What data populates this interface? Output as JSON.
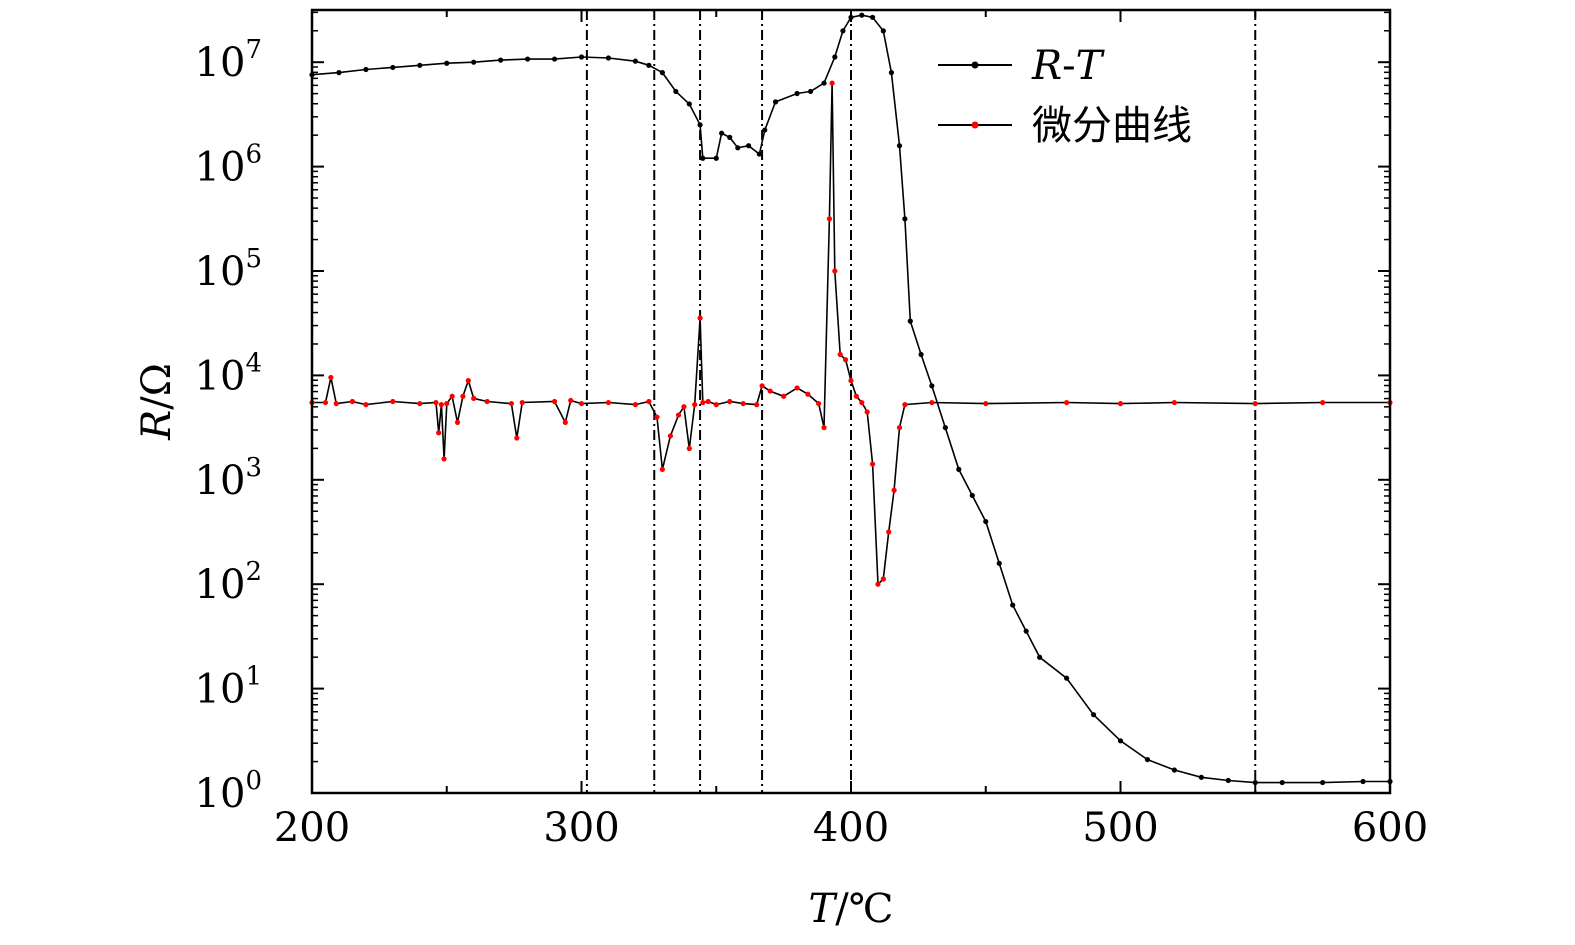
{
  "chart_data": {
    "type": "line",
    "title": "",
    "xlabel": {
      "var": "T",
      "unit": "℃"
    },
    "ylabel": {
      "var": "R",
      "unit": "Ω"
    },
    "xlim": [
      200,
      600
    ],
    "ylim_log10": [
      0,
      7.5
    ],
    "yscale": "log",
    "x_ticks": [
      {
        "value": 200,
        "label": "200"
      },
      {
        "value": 300,
        "label": "300"
      },
      {
        "value": 400,
        "label": "400"
      },
      {
        "value": 500,
        "label": "500"
      },
      {
        "value": 600,
        "label": "600"
      }
    ],
    "y_ticks": [
      {
        "exp": 0,
        "base": "10",
        "sup": "0"
      },
      {
        "exp": 1,
        "base": "10",
        "sup": "1"
      },
      {
        "exp": 2,
        "base": "10",
        "sup": "2"
      },
      {
        "exp": 3,
        "base": "10",
        "sup": "3"
      },
      {
        "exp": 4,
        "base": "10",
        "sup": "4"
      },
      {
        "exp": 5,
        "base": "10",
        "sup": "5"
      },
      {
        "exp": 6,
        "base": "10",
        "sup": "6"
      },
      {
        "exp": 7,
        "base": "10",
        "sup": "7"
      }
    ],
    "vlines": [
      302,
      327,
      344,
      367,
      400,
      550
    ],
    "legend_position": "top-right",
    "series": [
      {
        "name": "R-T",
        "legend_parts": [
          "R",
          "-",
          "T"
        ],
        "color": "#000000",
        "points": [
          [
            200,
            6.88
          ],
          [
            210,
            6.9
          ],
          [
            220,
            6.93
          ],
          [
            230,
            6.95
          ],
          [
            240,
            6.97
          ],
          [
            250,
            6.99
          ],
          [
            260,
            7.0
          ],
          [
            270,
            7.02
          ],
          [
            280,
            7.03
          ],
          [
            290,
            7.03
          ],
          [
            300,
            7.05
          ],
          [
            310,
            7.04
          ],
          [
            320,
            7.01
          ],
          [
            325,
            6.97
          ],
          [
            330,
            6.9
          ],
          [
            335,
            6.72
          ],
          [
            340,
            6.6
          ],
          [
            344,
            6.4
          ],
          [
            345,
            6.08
          ],
          [
            350,
            6.08
          ],
          [
            352,
            6.32
          ],
          [
            355,
            6.28
          ],
          [
            358,
            6.18
          ],
          [
            362,
            6.2
          ],
          [
            366,
            6.12
          ],
          [
            368,
            6.35
          ],
          [
            372,
            6.62
          ],
          [
            380,
            6.7
          ],
          [
            385,
            6.72
          ],
          [
            390,
            6.8
          ],
          [
            394,
            7.05
          ],
          [
            397,
            7.3
          ],
          [
            400,
            7.43
          ],
          [
            404,
            7.45
          ],
          [
            408,
            7.43
          ],
          [
            412,
            7.3
          ],
          [
            415,
            6.9
          ],
          [
            418,
            6.2
          ],
          [
            420,
            5.5
          ],
          [
            422,
            4.52
          ],
          [
            426,
            4.2
          ],
          [
            430,
            3.9
          ],
          [
            435,
            3.5
          ],
          [
            440,
            3.1
          ],
          [
            445,
            2.85
          ],
          [
            450,
            2.6
          ],
          [
            455,
            2.2
          ],
          [
            460,
            1.8
          ],
          [
            465,
            1.55
          ],
          [
            470,
            1.3
          ],
          [
            480,
            1.1
          ],
          [
            490,
            0.75
          ],
          [
            500,
            0.5
          ],
          [
            510,
            0.32
          ],
          [
            520,
            0.22
          ],
          [
            530,
            0.15
          ],
          [
            540,
            0.12
          ],
          [
            550,
            0.1
          ],
          [
            560,
            0.1
          ],
          [
            575,
            0.1
          ],
          [
            590,
            0.11
          ],
          [
            600,
            0.11
          ]
        ]
      },
      {
        "name": "微分曲线",
        "legend_parts": [
          "微分曲线"
        ],
        "color": "#ff0000",
        "points": [
          [
            200,
            3.74
          ],
          [
            205,
            3.74
          ],
          [
            207,
            3.98
          ],
          [
            209,
            3.73
          ],
          [
            215,
            3.75
          ],
          [
            220,
            3.72
          ],
          [
            230,
            3.75
          ],
          [
            240,
            3.73
          ],
          [
            246,
            3.74
          ],
          [
            247,
            3.45
          ],
          [
            248,
            3.72
          ],
          [
            249,
            3.2
          ],
          [
            250,
            3.73
          ],
          [
            252,
            3.8
          ],
          [
            254,
            3.55
          ],
          [
            256,
            3.8
          ],
          [
            258,
            3.95
          ],
          [
            260,
            3.78
          ],
          [
            265,
            3.75
          ],
          [
            274,
            3.73
          ],
          [
            276,
            3.4
          ],
          [
            278,
            3.74
          ],
          [
            290,
            3.75
          ],
          [
            294,
            3.55
          ],
          [
            296,
            3.76
          ],
          [
            300,
            3.73
          ],
          [
            310,
            3.74
          ],
          [
            320,
            3.72
          ],
          [
            325,
            3.75
          ],
          [
            328,
            3.6
          ],
          [
            330,
            3.1
          ],
          [
            333,
            3.42
          ],
          [
            336,
            3.62
          ],
          [
            338,
            3.7
          ],
          [
            340,
            3.3
          ],
          [
            342,
            3.72
          ],
          [
            344,
            4.55
          ],
          [
            345,
            3.74
          ],
          [
            347,
            3.75
          ],
          [
            350,
            3.72
          ],
          [
            355,
            3.75
          ],
          [
            360,
            3.73
          ],
          [
            365,
            3.72
          ],
          [
            367,
            3.9
          ],
          [
            370,
            3.85
          ],
          [
            375,
            3.8
          ],
          [
            380,
            3.88
          ],
          [
            384,
            3.82
          ],
          [
            388,
            3.73
          ],
          [
            390,
            3.5
          ],
          [
            392,
            5.5
          ],
          [
            393,
            6.8
          ],
          [
            394,
            5.0
          ],
          [
            396,
            4.2
          ],
          [
            398,
            4.15
          ],
          [
            400,
            3.95
          ],
          [
            402,
            3.8
          ],
          [
            404,
            3.74
          ],
          [
            406,
            3.65
          ],
          [
            408,
            3.15
          ],
          [
            410,
            2.0
          ],
          [
            412,
            2.05
          ],
          [
            414,
            2.5
          ],
          [
            416,
            2.9
          ],
          [
            418,
            3.5
          ],
          [
            420,
            3.72
          ],
          [
            430,
            3.74
          ],
          [
            450,
            3.73
          ],
          [
            480,
            3.74
          ],
          [
            500,
            3.73
          ],
          [
            520,
            3.74
          ],
          [
            550,
            3.73
          ],
          [
            575,
            3.74
          ],
          [
            600,
            3.74
          ]
        ]
      }
    ]
  }
}
